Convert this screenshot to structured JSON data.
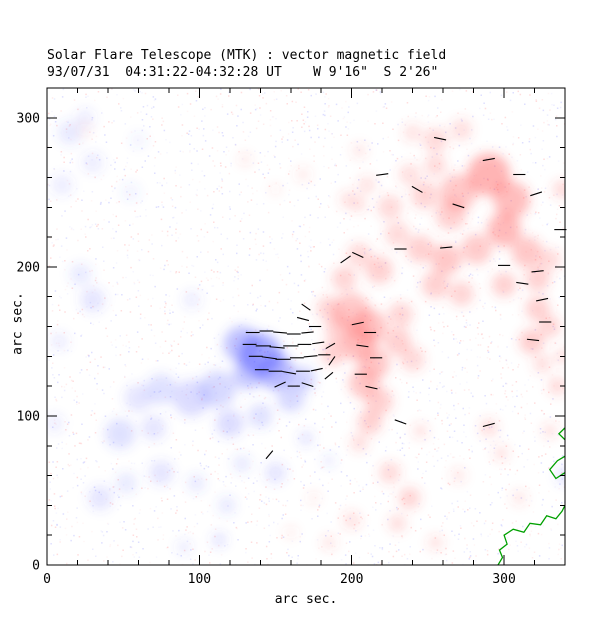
{
  "chart_data": {
    "type": "heatmap",
    "title": "Solar Flare Telescope (MTK) : vector magnetic field",
    "subtitle": "93/07/31  04:31:22-04:32:28 UT    W 9'16\"  S 2'26\"",
    "xlabel": "arc sec.",
    "ylabel": "arc sec.",
    "xlim": [
      0,
      340
    ],
    "ylim": [
      0,
      320
    ],
    "xticks": [
      0,
      100,
      200,
      300
    ],
    "yticks": [
      0,
      100,
      200,
      300
    ],
    "minor_tick_step": 20,
    "grid": false,
    "background_noise": true,
    "legend_position": "none",
    "colors": {
      "positive": "#ff4545",
      "negative": "#4950ff",
      "contour": "#00a000",
      "axis": "#000000",
      "vectors": "#000000"
    },
    "neg_blobs": [
      [
        140,
        141,
        14,
        0.95
      ],
      [
        128,
        148,
        12,
        0.7
      ],
      [
        150,
        130,
        12,
        0.8
      ],
      [
        132,
        128,
        10,
        0.6
      ],
      [
        112,
        118,
        12,
        0.45
      ],
      [
        95,
        112,
        12,
        0.4
      ],
      [
        75,
        118,
        10,
        0.35
      ],
      [
        60,
        112,
        9,
        0.3
      ],
      [
        48,
        88,
        10,
        0.35
      ],
      [
        70,
        92,
        8,
        0.3
      ],
      [
        120,
        95,
        9,
        0.4
      ],
      [
        140,
        100,
        8,
        0.35
      ],
      [
        160,
        112,
        9,
        0.45
      ],
      [
        168,
        125,
        8,
        0.5
      ],
      [
        35,
        45,
        8,
        0.3
      ],
      [
        52,
        55,
        7,
        0.25
      ],
      [
        75,
        62,
        8,
        0.3
      ],
      [
        98,
        55,
        6,
        0.25
      ],
      [
        118,
        40,
        6,
        0.25
      ],
      [
        150,
        62,
        7,
        0.3
      ],
      [
        128,
        68,
        6,
        0.25
      ],
      [
        30,
        178,
        8,
        0.3
      ],
      [
        22,
        195,
        7,
        0.25
      ],
      [
        15,
        290,
        8,
        0.25
      ],
      [
        30,
        270,
        7,
        0.2
      ],
      [
        10,
        255,
        7,
        0.2
      ],
      [
        55,
        250,
        6,
        0.15
      ],
      [
        95,
        178,
        6,
        0.2
      ],
      [
        113,
        17,
        5,
        0.3
      ],
      [
        90,
        12,
        5,
        0.2
      ],
      [
        170,
        85,
        5,
        0.3
      ],
      [
        185,
        70,
        4,
        0.25
      ],
      [
        340,
        60,
        6,
        0.3
      ],
      [
        25,
        300,
        6,
        0.2
      ],
      [
        60,
        285,
        5,
        0.15
      ],
      [
        8,
        150,
        6,
        0.2
      ],
      [
        5,
        95,
        6,
        0.2
      ]
    ],
    "pos_blobs": [
      [
        290,
        262,
        14,
        0.8
      ],
      [
        270,
        250,
        12,
        0.6
      ],
      [
        305,
        245,
        12,
        0.7
      ],
      [
        265,
        235,
        10,
        0.5
      ],
      [
        248,
        248,
        9,
        0.45
      ],
      [
        300,
        225,
        11,
        0.75
      ],
      [
        315,
        210,
        10,
        0.6
      ],
      [
        282,
        212,
        10,
        0.55
      ],
      [
        262,
        205,
        10,
        0.6
      ],
      [
        245,
        212,
        9,
        0.5
      ],
      [
        230,
        222,
        8,
        0.4
      ],
      [
        255,
        188,
        9,
        0.5
      ],
      [
        272,
        182,
        8,
        0.45
      ],
      [
        300,
        188,
        8,
        0.5
      ],
      [
        322,
        192,
        8,
        0.5
      ],
      [
        330,
        205,
        7,
        0.4
      ],
      [
        218,
        198,
        9,
        0.5
      ],
      [
        205,
        208,
        8,
        0.4
      ],
      [
        195,
        192,
        8,
        0.45
      ],
      [
        225,
        240,
        8,
        0.4
      ],
      [
        238,
        262,
        7,
        0.35
      ],
      [
        255,
        268,
        7,
        0.4
      ],
      [
        210,
        255,
        6,
        0.3
      ],
      [
        198,
        245,
        6,
        0.3
      ],
      [
        200,
        170,
        12,
        0.6
      ],
      [
        212,
        160,
        11,
        0.65
      ],
      [
        205,
        148,
        11,
        0.7
      ],
      [
        215,
        135,
        10,
        0.6
      ],
      [
        208,
        122,
        10,
        0.6
      ],
      [
        218,
        110,
        9,
        0.5
      ],
      [
        192,
        158,
        9,
        0.5
      ],
      [
        185,
        172,
        8,
        0.45
      ],
      [
        188,
        142,
        8,
        0.5
      ],
      [
        230,
        150,
        9,
        0.5
      ],
      [
        240,
        138,
        8,
        0.4
      ],
      [
        232,
        168,
        8,
        0.45
      ],
      [
        212,
        96,
        8,
        0.5
      ],
      [
        205,
        82,
        6,
        0.35
      ],
      [
        322,
        172,
        8,
        0.5
      ],
      [
        318,
        150,
        8,
        0.55
      ],
      [
        330,
        160,
        7,
        0.45
      ],
      [
        325,
        135,
        6,
        0.35
      ],
      [
        335,
        120,
        6,
        0.4
      ],
      [
        255,
        285,
        8,
        0.4
      ],
      [
        272,
        292,
        7,
        0.35
      ],
      [
        240,
        290,
        6,
        0.3
      ],
      [
        205,
        278,
        5,
        0.25
      ],
      [
        130,
        272,
        4,
        0.25
      ],
      [
        25,
        292,
        4,
        0.2
      ],
      [
        225,
        62,
        7,
        0.4
      ],
      [
        238,
        45,
        7,
        0.45
      ],
      [
        230,
        28,
        6,
        0.35
      ],
      [
        200,
        30,
        6,
        0.3
      ],
      [
        255,
        15,
        5,
        0.3
      ],
      [
        185,
        15,
        5,
        0.25
      ],
      [
        160,
        22,
        4,
        0.2
      ],
      [
        290,
        92,
        6,
        0.35
      ],
      [
        298,
        75,
        5,
        0.3
      ],
      [
        270,
        60,
        5,
        0.25
      ],
      [
        310,
        45,
        5,
        0.25
      ],
      [
        330,
        90,
        5,
        0.3
      ],
      [
        338,
        252,
        6,
        0.4
      ],
      [
        245,
        90,
        5,
        0.3
      ],
      [
        175,
        45,
        4,
        0.2
      ],
      [
        168,
        262,
        5,
        0.2
      ],
      [
        150,
        252,
        4,
        0.15
      ],
      [
        338,
        140,
        5,
        0.35
      ],
      [
        205,
        242,
        5,
        0.3
      ]
    ],
    "vectors": [
      [
        135,
        156,
        0,
        9
      ],
      [
        144,
        157,
        0,
        9
      ],
      [
        153,
        156,
        -5,
        9
      ],
      [
        162,
        155,
        0,
        9
      ],
      [
        171,
        156,
        5,
        8
      ],
      [
        133,
        148,
        0,
        9
      ],
      [
        142,
        147,
        0,
        10
      ],
      [
        151,
        146,
        -5,
        10
      ],
      [
        160,
        147,
        0,
        10
      ],
      [
        169,
        148,
        0,
        9
      ],
      [
        178,
        149,
        8,
        8
      ],
      [
        137,
        140,
        0,
        9
      ],
      [
        146,
        139,
        -8,
        10
      ],
      [
        155,
        138,
        0,
        10
      ],
      [
        164,
        139,
        0,
        9
      ],
      [
        173,
        140,
        5,
        9
      ],
      [
        182,
        141,
        0,
        8
      ],
      [
        141,
        131,
        0,
        9
      ],
      [
        150,
        130,
        0,
        9
      ],
      [
        159,
        129,
        -10,
        9
      ],
      [
        168,
        130,
        0,
        9
      ],
      [
        177,
        131,
        12,
        8
      ],
      [
        153,
        121,
        25,
        8
      ],
      [
        162,
        120,
        0,
        8
      ],
      [
        171,
        121,
        -18,
        8
      ],
      [
        185,
        127,
        40,
        7
      ],
      [
        187,
        137,
        55,
        7
      ],
      [
        186,
        147,
        30,
        7
      ],
      [
        168,
        165,
        -15,
        8
      ],
      [
        176,
        160,
        0,
        8
      ],
      [
        170,
        173,
        -35,
        7
      ],
      [
        146,
        74,
        50,
        7
      ],
      [
        204,
        162,
        12,
        8
      ],
      [
        212,
        156,
        0,
        8
      ],
      [
        207,
        147,
        -8,
        8
      ],
      [
        216,
        139,
        0,
        8
      ],
      [
        206,
        128,
        0,
        8
      ],
      [
        213,
        119,
        -12,
        8
      ],
      [
        196,
        205,
        35,
        8
      ],
      [
        204,
        208,
        -25,
        8
      ],
      [
        232,
        212,
        0,
        8
      ],
      [
        262,
        213,
        5,
        8
      ],
      [
        270,
        241,
        -18,
        8
      ],
      [
        300,
        201,
        0,
        8
      ],
      [
        312,
        189,
        -8,
        8
      ],
      [
        322,
        197,
        6,
        8
      ],
      [
        325,
        178,
        12,
        8
      ],
      [
        327,
        163,
        0,
        8
      ],
      [
        319,
        151,
        -6,
        8
      ],
      [
        243,
        252,
        -30,
        8
      ],
      [
        321,
        249,
        18,
        8
      ],
      [
        310,
        262,
        0,
        8
      ],
      [
        337,
        225,
        0,
        8
      ],
      [
        290,
        272,
        10,
        8
      ],
      [
        258,
        286,
        -12,
        8
      ],
      [
        232,
        96,
        -20,
        8
      ],
      [
        290,
        94,
        15,
        8
      ],
      [
        220,
        262,
        8,
        8
      ]
    ],
    "green_contours": [
      [
        [
          296,
          0
        ],
        [
          299,
          5
        ],
        [
          297,
          10
        ],
        [
          302,
          14
        ],
        [
          300,
          20
        ],
        [
          306,
          24
        ],
        [
          313,
          22
        ],
        [
          317,
          28
        ],
        [
          324,
          27
        ],
        [
          328,
          33
        ],
        [
          334,
          31
        ],
        [
          338,
          36
        ],
        [
          340,
          40
        ]
      ],
      [
        [
          340,
          62
        ],
        [
          334,
          58
        ],
        [
          330,
          64
        ],
        [
          335,
          70
        ],
        [
          340,
          73
        ]
      ],
      [
        [
          340,
          84
        ],
        [
          336,
          88
        ],
        [
          340,
          92
        ]
      ]
    ]
  }
}
